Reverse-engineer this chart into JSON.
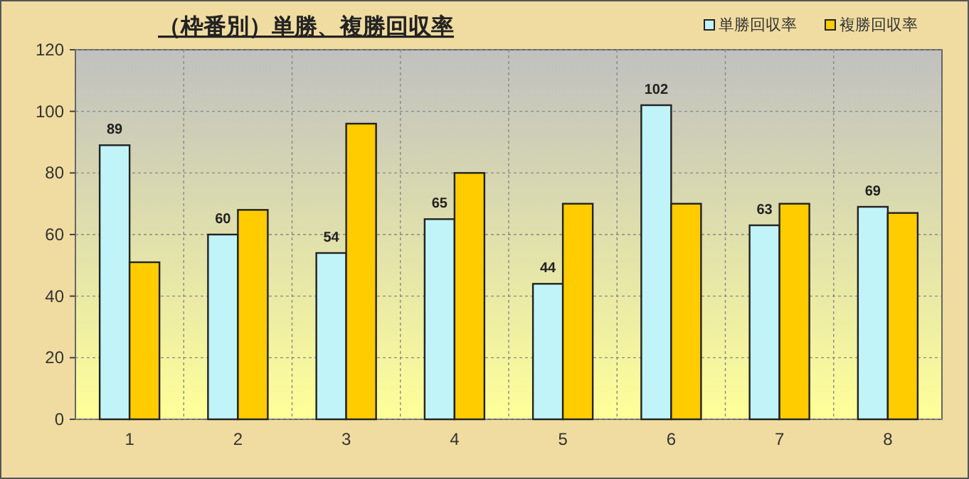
{
  "chart_data": {
    "type": "bar",
    "title": "（枠番別）単勝、複勝回収率",
    "categories": [
      "1",
      "2",
      "3",
      "4",
      "5",
      "6",
      "7",
      "8"
    ],
    "series": [
      {
        "name": "単勝回収率",
        "color": "#c0f4f8",
        "values": [
          89,
          60,
          54,
          65,
          44,
          102,
          63,
          69
        ],
        "value_labels": [
          "89",
          "60",
          "54",
          "65",
          "44",
          "102",
          "63",
          "69"
        ]
      },
      {
        "name": "複勝回収率",
        "color": "#ffcc00",
        "values": [
          51,
          68,
          96,
          80,
          70,
          70,
          70,
          67
        ]
      }
    ],
    "ylim": [
      0,
      120
    ],
    "yticks": [
      0,
      20,
      40,
      60,
      80,
      100,
      120
    ],
    "grid": true,
    "legend": "top right"
  }
}
